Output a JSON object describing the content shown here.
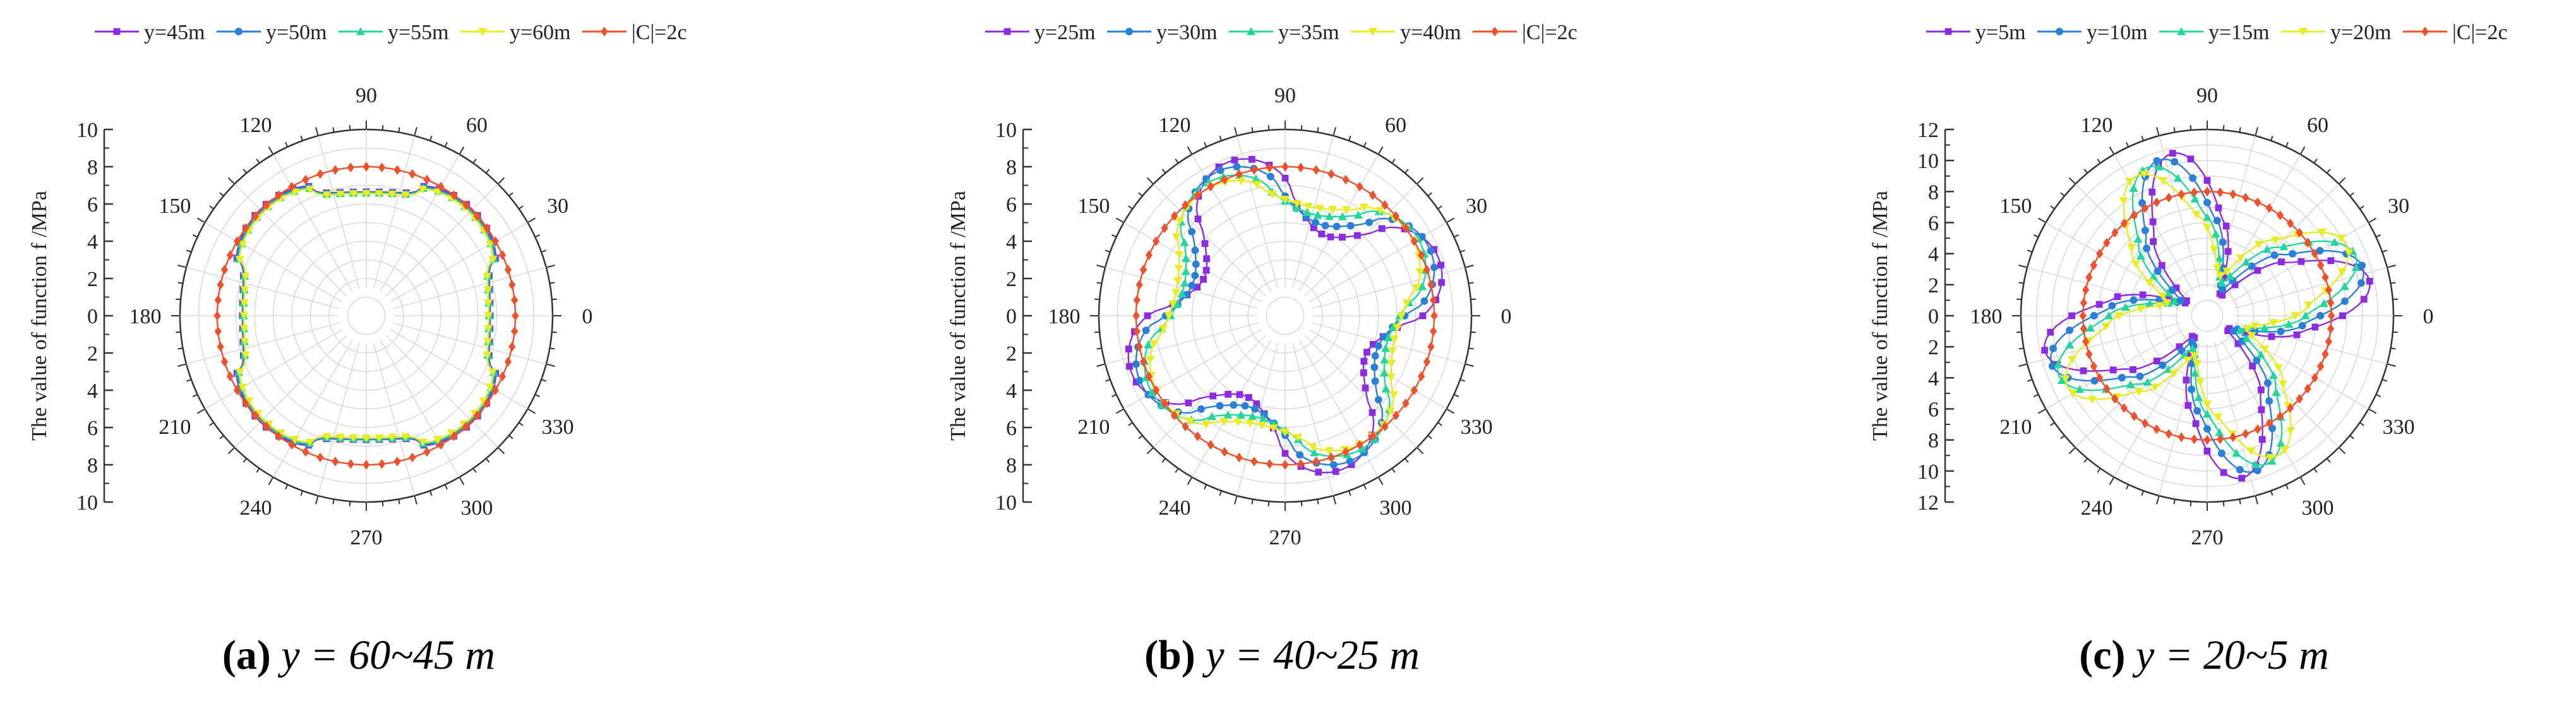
{
  "chart_data": [
    {
      "type": "polar-line",
      "panel_id": "a",
      "caption_label": "(a)",
      "caption_text": "y = 60~45 m",
      "ylabel": "The value of function f /MPa",
      "rmax": 10,
      "radial_ticks": [
        "0",
        "2",
        "4",
        "6",
        "8",
        "10"
      ],
      "angle_ticks": [
        "0",
        "30",
        "60",
        "90",
        "120",
        "150",
        "180",
        "210",
        "240",
        "270",
        "300",
        "330"
      ],
      "series": [
        {
          "name": "y=45m",
          "color": "#8b2be2",
          "marker": "square",
          "r0": 7.35,
          "amp": 0.7,
          "k": 4,
          "phase": 45,
          "sharp": 0.45
        },
        {
          "name": "y=50m",
          "color": "#2a7fd8",
          "marker": "circle",
          "r0": 7.3,
          "amp": 0.68,
          "k": 4,
          "phase": 45,
          "sharp": 0.45
        },
        {
          "name": "y=55m",
          "color": "#22d6a0",
          "marker": "triangle",
          "r0": 7.25,
          "amp": 0.66,
          "k": 4,
          "phase": 45,
          "sharp": 0.45
        },
        {
          "name": "y=60m",
          "color": "#e8ec22",
          "marker": "triangle-down",
          "r0": 7.2,
          "amp": 0.64,
          "k": 4,
          "phase": 45,
          "sharp": 0.45
        },
        {
          "name": "|C|=2c",
          "color": "#f0502a",
          "marker": "diamond",
          "r0": 8.0,
          "amp": 0,
          "k": 4,
          "phase": 0,
          "sharp": 1
        }
      ]
    },
    {
      "type": "polar-line",
      "panel_id": "b",
      "caption_label": "(b)",
      "caption_text": "y = 40~25 m",
      "ylabel": "The value of function f /MPa",
      "rmax": 10,
      "radial_ticks": [
        "0",
        "2",
        "4",
        "6",
        "8",
        "10"
      ],
      "angle_ticks": [
        "0",
        "30",
        "60",
        "90",
        "120",
        "150",
        "180",
        "210",
        "240",
        "270",
        "300",
        "330"
      ],
      "series": [
        {
          "name": "y=25m",
          "color": "#8b2be2",
          "marker": "square",
          "r0": 6.8,
          "amp": 2.0,
          "k": 4,
          "phase": 20,
          "sharp": 0.7
        },
        {
          "name": "y=30m",
          "color": "#2a7fd8",
          "marker": "circle",
          "r0": 6.9,
          "amp": 1.65,
          "k": 4,
          "phase": 25,
          "sharp": 0.7
        },
        {
          "name": "y=35m",
          "color": "#22d6a0",
          "marker": "triangle",
          "r0": 6.95,
          "amp": 1.3,
          "k": 4,
          "phase": 30,
          "sharp": 0.7
        },
        {
          "name": "y=40m",
          "color": "#e8ec22",
          "marker": "triangle-down",
          "r0": 7.0,
          "amp": 1.0,
          "k": 4,
          "phase": 33,
          "sharp": 0.7
        },
        {
          "name": "|C|=2c",
          "color": "#f0502a",
          "marker": "diamond",
          "r0": 8.0,
          "amp": 0,
          "k": 4,
          "phase": 0,
          "sharp": 1
        }
      ]
    },
    {
      "type": "polar-line",
      "panel_id": "c",
      "caption_label": "(c)",
      "caption_text": "y = 20~5 m",
      "ylabel": "The value of function f /MPa",
      "rmax": 12,
      "radial_ticks": [
        "0",
        "2",
        "4",
        "6",
        "8",
        "10",
        "12"
      ],
      "angle_ticks": [
        "0",
        "30",
        "60",
        "90",
        "120",
        "150",
        "180",
        "210",
        "240",
        "270",
        "300",
        "330"
      ],
      "series": [
        {
          "name": "y=5m",
          "color": "#8b2be2",
          "marker": "square",
          "r0": 6.1,
          "amp": 4.6,
          "k": 4,
          "phase": 12,
          "sharp": 1.4
        },
        {
          "name": "y=10m",
          "color": "#2a7fd8",
          "marker": "circle",
          "r0": 6.2,
          "amp": 4.3,
          "k": 4,
          "phase": 17,
          "sharp": 1.4
        },
        {
          "name": "y=15m",
          "color": "#22d6a0",
          "marker": "triangle",
          "r0": 6.3,
          "amp": 4.0,
          "k": 4,
          "phase": 22,
          "sharp": 1.4
        },
        {
          "name": "y=20m",
          "color": "#e8ec22",
          "marker": "triangle-down",
          "r0": 6.4,
          "amp": 3.7,
          "k": 4,
          "phase": 27,
          "sharp": 1.4
        },
        {
          "name": "|C|=2c",
          "color": "#f0502a",
          "marker": "diamond",
          "r0": 8.0,
          "amp": 0,
          "k": 4,
          "phase": 0,
          "sharp": 1
        }
      ]
    }
  ]
}
